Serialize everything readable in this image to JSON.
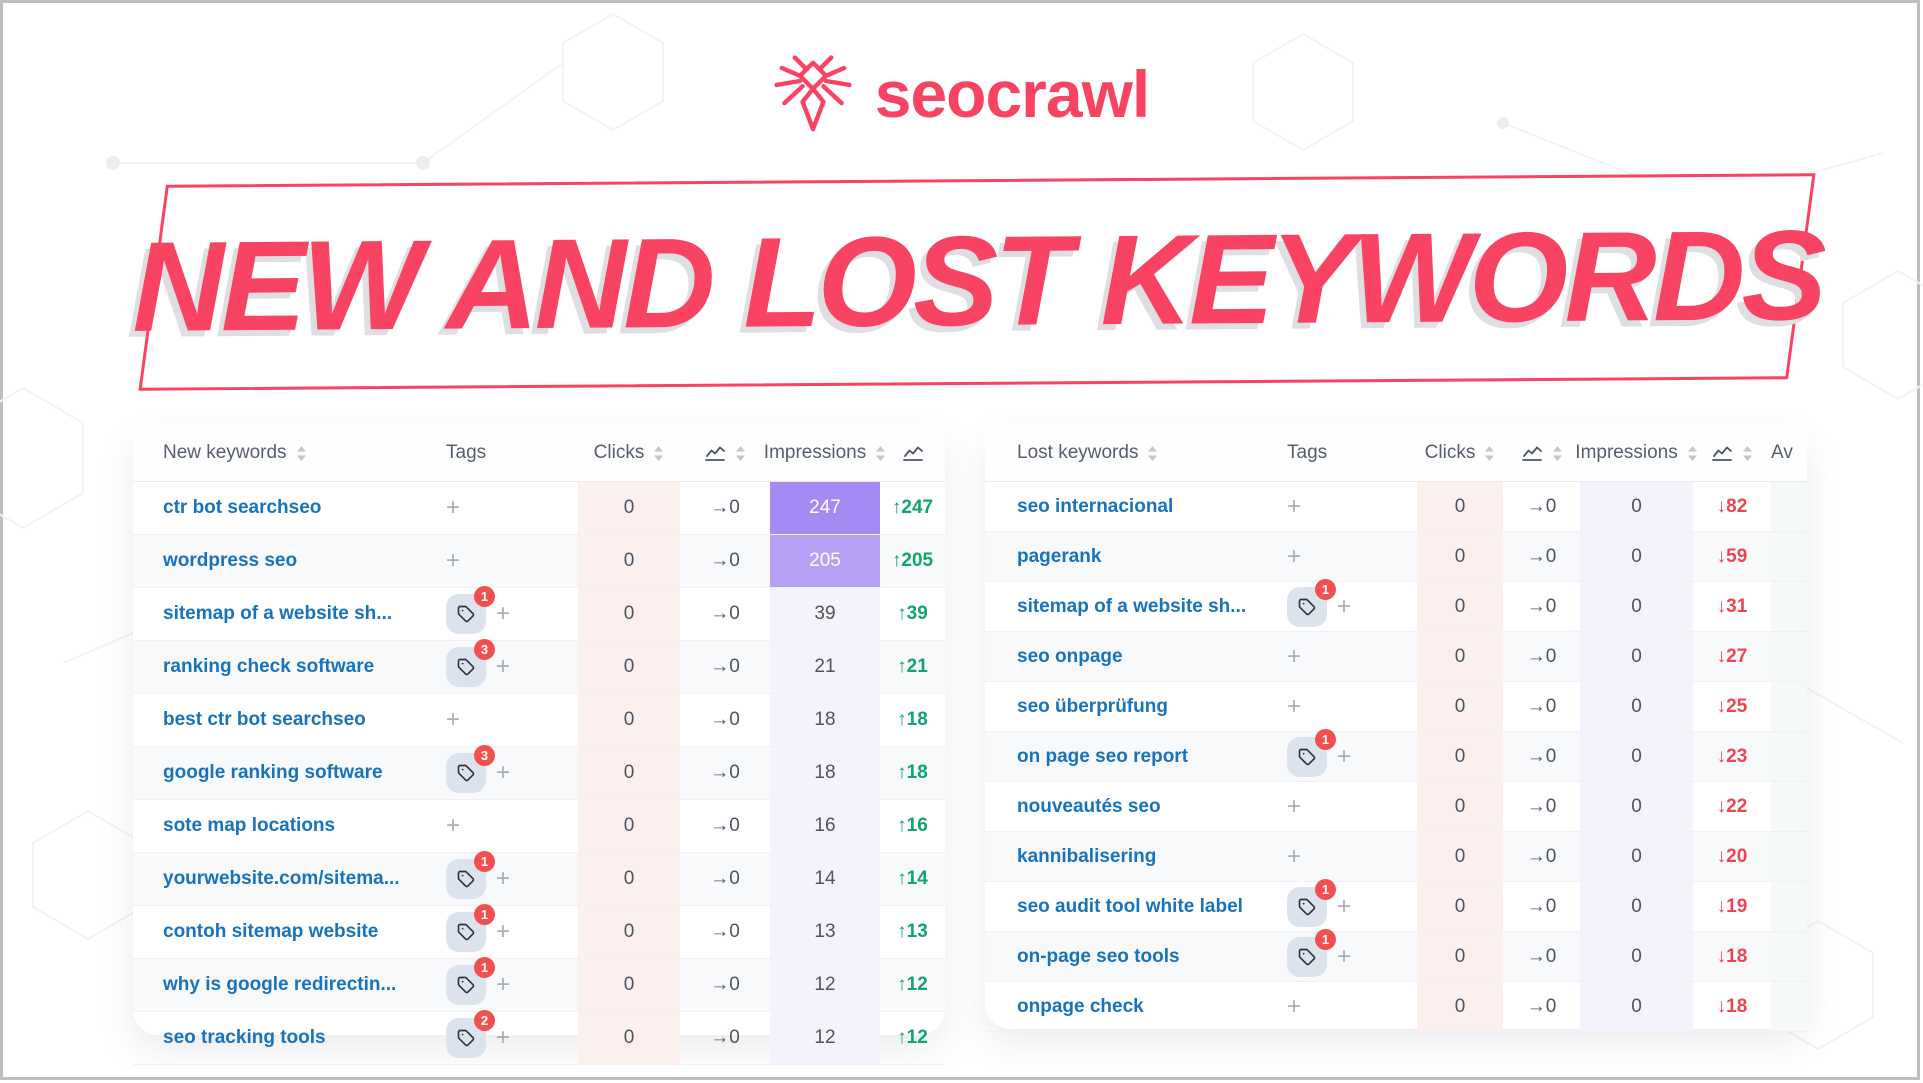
{
  "brand": {
    "name": "seocrawl"
  },
  "banner": {
    "title": "NEW AND LOST KEYWORDS"
  },
  "colors": {
    "accent": "#f84363",
    "keyword_link": "#1873bd",
    "up_green": "#10a56b",
    "down_red": "#ee4451",
    "clicks_col_bg": "#fcf0ee",
    "impressions_col_bg": "#f4f2fa",
    "impressions_heat_strong": "#a58af3",
    "impressions_heat_medium": "#b6a0f6",
    "tag_badge_red": "#f25050"
  },
  "icons": {
    "spider": "spider-logo",
    "sort": "sort-arrows",
    "line_chart": "line-chart",
    "tag": "tag",
    "add": "+",
    "up_arrow": "↑",
    "down_arrow": "↓",
    "flat_arrow": "→"
  },
  "new_table": {
    "headers": {
      "keyword": "New keywords",
      "tags": "Tags",
      "clicks": "Clicks",
      "impressions": "Impressions"
    },
    "trend_arrow": "↑",
    "rows": [
      {
        "keyword": "ctr bot searchseo",
        "tags": null,
        "clicks": "0",
        "delta": "→0",
        "impressions": "247",
        "change": "247",
        "heat": 2
      },
      {
        "keyword": "wordpress seo",
        "tags": null,
        "clicks": "0",
        "delta": "→0",
        "impressions": "205",
        "change": "205",
        "heat": 1
      },
      {
        "keyword": "sitemap of a website sh...",
        "tags": 1,
        "clicks": "0",
        "delta": "→0",
        "impressions": "39",
        "change": "39",
        "heat": 0
      },
      {
        "keyword": "ranking check software",
        "tags": 3,
        "clicks": "0",
        "delta": "→0",
        "impressions": "21",
        "change": "21",
        "heat": 0
      },
      {
        "keyword": "best ctr bot searchseo",
        "tags": null,
        "clicks": "0",
        "delta": "→0",
        "impressions": "18",
        "change": "18",
        "heat": 0
      },
      {
        "keyword": "google ranking software",
        "tags": 3,
        "clicks": "0",
        "delta": "→0",
        "impressions": "18",
        "change": "18",
        "heat": 0
      },
      {
        "keyword": "sote map locations",
        "tags": null,
        "clicks": "0",
        "delta": "→0",
        "impressions": "16",
        "change": "16",
        "heat": 0
      },
      {
        "keyword": "yourwebsite.com/sitema...",
        "tags": 1,
        "clicks": "0",
        "delta": "→0",
        "impressions": "14",
        "change": "14",
        "heat": 0
      },
      {
        "keyword": "contoh sitemap website",
        "tags": 1,
        "clicks": "0",
        "delta": "→0",
        "impressions": "13",
        "change": "13",
        "heat": 0
      },
      {
        "keyword": "why is google redirectin...",
        "tags": 1,
        "clicks": "0",
        "delta": "→0",
        "impressions": "12",
        "change": "12",
        "heat": 0
      },
      {
        "keyword": "seo tracking tools",
        "tags": 2,
        "clicks": "0",
        "delta": "→0",
        "impressions": "12",
        "change": "12",
        "heat": 0
      }
    ]
  },
  "lost_table": {
    "headers": {
      "keyword": "Lost keywords",
      "tags": "Tags",
      "clicks": "Clicks",
      "impressions": "Impressions",
      "extra": "Av"
    },
    "trend_arrow": "↓",
    "rows": [
      {
        "keyword": "seo internacional",
        "tags": null,
        "clicks": "0",
        "delta": "→0",
        "impressions": "0",
        "change": "82",
        "heat": 0
      },
      {
        "keyword": "pagerank",
        "tags": null,
        "clicks": "0",
        "delta": "→0",
        "impressions": "0",
        "change": "59",
        "heat": 0
      },
      {
        "keyword": "sitemap of a website sh...",
        "tags": 1,
        "clicks": "0",
        "delta": "→0",
        "impressions": "0",
        "change": "31",
        "heat": 0
      },
      {
        "keyword": "seo onpage",
        "tags": null,
        "clicks": "0",
        "delta": "→0",
        "impressions": "0",
        "change": "27",
        "heat": 0
      },
      {
        "keyword": "seo überprüfung",
        "tags": null,
        "clicks": "0",
        "delta": "→0",
        "impressions": "0",
        "change": "25",
        "heat": 0
      },
      {
        "keyword": "on page seo report",
        "tags": 1,
        "clicks": "0",
        "delta": "→0",
        "impressions": "0",
        "change": "23",
        "heat": 0
      },
      {
        "keyword": "nouveautés seo",
        "tags": null,
        "clicks": "0",
        "delta": "→0",
        "impressions": "0",
        "change": "22",
        "heat": 0
      },
      {
        "keyword": "kannibalisering",
        "tags": null,
        "clicks": "0",
        "delta": "→0",
        "impressions": "0",
        "change": "20",
        "heat": 0
      },
      {
        "keyword": "seo audit tool white label",
        "tags": 1,
        "clicks": "0",
        "delta": "→0",
        "impressions": "0",
        "change": "19",
        "heat": 0
      },
      {
        "keyword": "on-page seo tools",
        "tags": 1,
        "clicks": "0",
        "delta": "→0",
        "impressions": "0",
        "change": "18",
        "heat": 0
      },
      {
        "keyword": "onpage check",
        "tags": null,
        "clicks": "0",
        "delta": "→0",
        "impressions": "0",
        "change": "18",
        "heat": 0
      }
    ]
  }
}
